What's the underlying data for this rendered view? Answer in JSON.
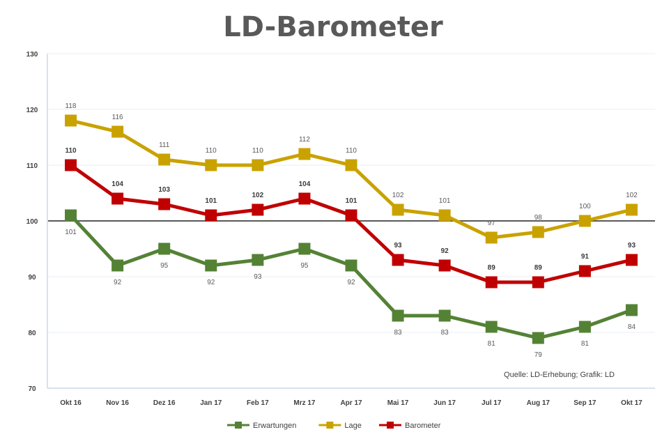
{
  "chart_data": {
    "type": "line",
    "title": "LD-Barometer",
    "categories": [
      "Okt 16",
      "Nov 16",
      "Dez 16",
      "Jan 17",
      "Feb 17",
      "Mrz 17",
      "Apr 17",
      "Mai 17",
      "Jun 17",
      "Jul 17",
      "Aug 17",
      "Sep 17",
      "Okt 17"
    ],
    "ylim": [
      70,
      130
    ],
    "yticks": [
      70,
      80,
      90,
      100,
      110,
      120,
      130
    ],
    "reference_line": 100,
    "grid": true,
    "legend_position": "bottom",
    "source_note": "Quelle: LD-Erhebung; Grafik: LD",
    "series": [
      {
        "name": "Erwartungen",
        "color": "#548235",
        "values": [
          101,
          92,
          95,
          92,
          93,
          95,
          92,
          83,
          83,
          81,
          79,
          81,
          84
        ],
        "labels": [
          "101",
          "92",
          "95",
          "92",
          "93",
          "95",
          "92",
          "83",
          "83",
          "81",
          "79",
          "81",
          "84"
        ],
        "label_position": "below"
      },
      {
        "name": "Lage",
        "color": "#C9A200",
        "values": [
          118,
          116,
          111,
          110,
          110,
          112,
          110,
          102,
          101,
          97,
          98,
          100,
          102
        ],
        "labels": [
          "118",
          "116",
          "111",
          "110",
          "110",
          "112",
          "110",
          "102",
          "101",
          "97",
          "98",
          "100",
          "102"
        ],
        "label_position": "above"
      },
      {
        "name": "Barometer",
        "color": "#C00000",
        "values": [
          110,
          104,
          103,
          101,
          102,
          104,
          101,
          93,
          92,
          89,
          89,
          91,
          93
        ],
        "labels": [
          "110",
          "104",
          "103",
          "101",
          "102",
          "104",
          "101",
          "93",
          "92",
          "89",
          "89",
          "91",
          "93"
        ],
        "label_position": "above"
      }
    ]
  }
}
